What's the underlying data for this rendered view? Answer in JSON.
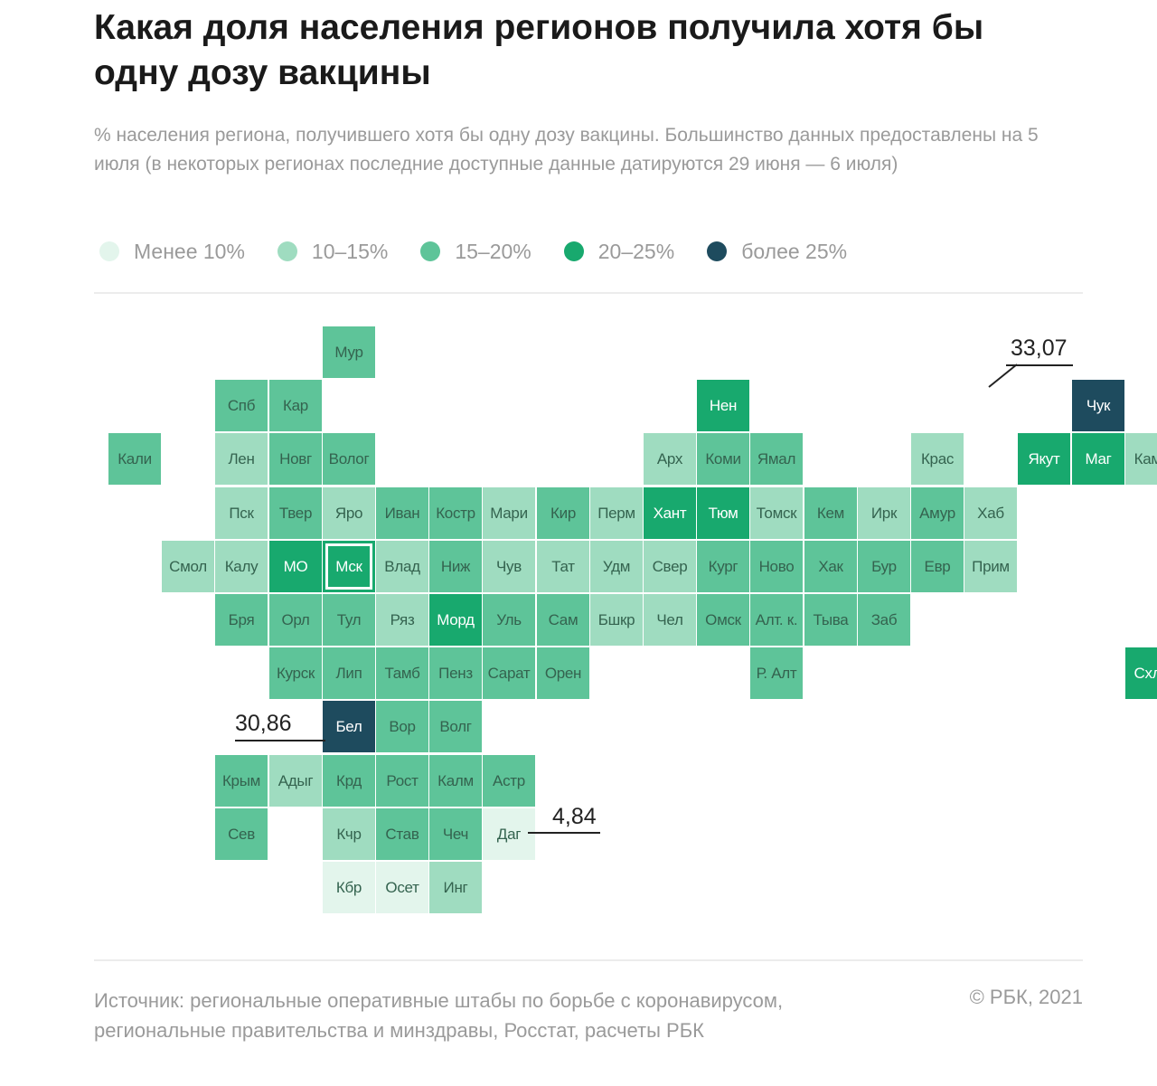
{
  "title": "Какая доля населения регионов получила хотя бы одну дозу вакцины",
  "subtitle": "% населения региона, получившего хотя бы одну дозу вакцины. Большинство данных предоставлены на 5 июля (в некоторых регионах последние доступные данные датируются 29 июня — 6 июля)",
  "legend": [
    {
      "label": "Менее 10%",
      "color": "#e3f5ec"
    },
    {
      "label": "10–15%",
      "color": "#9fdcc0"
    },
    {
      "label": "15–20%",
      "color": "#5ec499"
    },
    {
      "label": "20–25%",
      "color": "#18a96e"
    },
    {
      "label": "более 25%",
      "color": "#1e4b5e"
    }
  ],
  "text_colors": {
    "dark": "#34634f",
    "light": "#ffffff"
  },
  "regions": [
    {
      "label": "Мур",
      "class": 2,
      "col": 4,
      "row": 0
    },
    {
      "label": "Спб",
      "class": 2,
      "col": 2,
      "row": 1
    },
    {
      "label": "Кар",
      "class": 2,
      "col": 3,
      "row": 1
    },
    {
      "label": "Нен",
      "class": 3,
      "col": 11,
      "row": 1
    },
    {
      "label": "Чук",
      "class": 4,
      "col": 18,
      "row": 1
    },
    {
      "label": "Кали",
      "class": 2,
      "col": 0,
      "row": 2
    },
    {
      "label": "Лен",
      "class": 1,
      "col": 2,
      "row": 2
    },
    {
      "label": "Новг",
      "class": 2,
      "col": 3,
      "row": 2
    },
    {
      "label": "Волог",
      "class": 2,
      "col": 4,
      "row": 2
    },
    {
      "label": "Арх",
      "class": 1,
      "col": 10,
      "row": 2
    },
    {
      "label": "Коми",
      "class": 2,
      "col": 11,
      "row": 2
    },
    {
      "label": "Ямал",
      "class": 2,
      "col": 12,
      "row": 2
    },
    {
      "label": "Крас",
      "class": 1,
      "col": 15,
      "row": 2
    },
    {
      "label": "Якут",
      "class": 3,
      "col": 17,
      "row": 2
    },
    {
      "label": "Маг",
      "class": 3,
      "col": 18,
      "row": 2
    },
    {
      "label": "Камч",
      "class": 1,
      "col": 19,
      "row": 2
    },
    {
      "label": "Пск",
      "class": 1,
      "col": 2,
      "row": 3
    },
    {
      "label": "Твер",
      "class": 2,
      "col": 3,
      "row": 3
    },
    {
      "label": "Яро",
      "class": 1,
      "col": 4,
      "row": 3
    },
    {
      "label": "Иван",
      "class": 2,
      "col": 5,
      "row": 3
    },
    {
      "label": "Костр",
      "class": 2,
      "col": 6,
      "row": 3
    },
    {
      "label": "Мари",
      "class": 1,
      "col": 7,
      "row": 3
    },
    {
      "label": "Кир",
      "class": 2,
      "col": 8,
      "row": 3
    },
    {
      "label": "Перм",
      "class": 1,
      "col": 9,
      "row": 3
    },
    {
      "label": "Хант",
      "class": 3,
      "col": 10,
      "row": 3
    },
    {
      "label": "Тюм",
      "class": 3,
      "col": 11,
      "row": 3
    },
    {
      "label": "Томск",
      "class": 1,
      "col": 12,
      "row": 3
    },
    {
      "label": "Кем",
      "class": 2,
      "col": 13,
      "row": 3
    },
    {
      "label": "Ирк",
      "class": 1,
      "col": 14,
      "row": 3
    },
    {
      "label": "Амур",
      "class": 2,
      "col": 15,
      "row": 3
    },
    {
      "label": "Хаб",
      "class": 1,
      "col": 16,
      "row": 3
    },
    {
      "label": "Смол",
      "class": 1,
      "col": 1,
      "row": 4
    },
    {
      "label": "Калу",
      "class": 1,
      "col": 2,
      "row": 4
    },
    {
      "label": "МО",
      "class": 3,
      "col": 3,
      "row": 4
    },
    {
      "label": "Мск",
      "class": 3,
      "col": 4,
      "row": 4,
      "outlined": true
    },
    {
      "label": "Влад",
      "class": 1,
      "col": 5,
      "row": 4
    },
    {
      "label": "Ниж",
      "class": 2,
      "col": 6,
      "row": 4
    },
    {
      "label": "Чув",
      "class": 1,
      "col": 7,
      "row": 4
    },
    {
      "label": "Тат",
      "class": 1,
      "col": 8,
      "row": 4
    },
    {
      "label": "Удм",
      "class": 1,
      "col": 9,
      "row": 4
    },
    {
      "label": "Свер",
      "class": 1,
      "col": 10,
      "row": 4
    },
    {
      "label": "Кург",
      "class": 2,
      "col": 11,
      "row": 4
    },
    {
      "label": "Ново",
      "class": 2,
      "col": 12,
      "row": 4
    },
    {
      "label": "Хак",
      "class": 2,
      "col": 13,
      "row": 4
    },
    {
      "label": "Бур",
      "class": 2,
      "col": 14,
      "row": 4
    },
    {
      "label": "Евр",
      "class": 2,
      "col": 15,
      "row": 4
    },
    {
      "label": "Прим",
      "class": 1,
      "col": 16,
      "row": 4
    },
    {
      "label": "Бря",
      "class": 2,
      "col": 2,
      "row": 5
    },
    {
      "label": "Орл",
      "class": 2,
      "col": 3,
      "row": 5
    },
    {
      "label": "Тул",
      "class": 2,
      "col": 4,
      "row": 5
    },
    {
      "label": "Ряз",
      "class": 1,
      "col": 5,
      "row": 5
    },
    {
      "label": "Морд",
      "class": 3,
      "col": 6,
      "row": 5
    },
    {
      "label": "Уль",
      "class": 2,
      "col": 7,
      "row": 5
    },
    {
      "label": "Сам",
      "class": 2,
      "col": 8,
      "row": 5
    },
    {
      "label": "Бшкр",
      "class": 1,
      "col": 9,
      "row": 5
    },
    {
      "label": "Чел",
      "class": 1,
      "col": 10,
      "row": 5
    },
    {
      "label": "Омск",
      "class": 2,
      "col": 11,
      "row": 5
    },
    {
      "label": "Алт. к.",
      "class": 2,
      "col": 12,
      "row": 5
    },
    {
      "label": "Тыва",
      "class": 2,
      "col": 13,
      "row": 5
    },
    {
      "label": "Заб",
      "class": 2,
      "col": 14,
      "row": 5
    },
    {
      "label": "Курск",
      "class": 2,
      "col": 3,
      "row": 6
    },
    {
      "label": "Лип",
      "class": 2,
      "col": 4,
      "row": 6
    },
    {
      "label": "Тамб",
      "class": 2,
      "col": 5,
      "row": 6
    },
    {
      "label": "Пенз",
      "class": 2,
      "col": 6,
      "row": 6
    },
    {
      "label": "Сарат",
      "class": 2,
      "col": 7,
      "row": 6
    },
    {
      "label": "Орен",
      "class": 2,
      "col": 8,
      "row": 6
    },
    {
      "label": "Р. Алт",
      "class": 2,
      "col": 12,
      "row": 6
    },
    {
      "label": "Схлн",
      "class": 3,
      "col": 19,
      "row": 6
    },
    {
      "label": "Бел",
      "class": 4,
      "col": 4,
      "row": 7
    },
    {
      "label": "Вор",
      "class": 2,
      "col": 5,
      "row": 7
    },
    {
      "label": "Волг",
      "class": 2,
      "col": 6,
      "row": 7
    },
    {
      "label": "Крым",
      "class": 2,
      "col": 2,
      "row": 8
    },
    {
      "label": "Адыг",
      "class": 1,
      "col": 3,
      "row": 8
    },
    {
      "label": "Крд",
      "class": 2,
      "col": 4,
      "row": 8
    },
    {
      "label": "Рост",
      "class": 2,
      "col": 5,
      "row": 8
    },
    {
      "label": "Калм",
      "class": 2,
      "col": 6,
      "row": 8
    },
    {
      "label": "Астр",
      "class": 2,
      "col": 7,
      "row": 8
    },
    {
      "label": "Сев",
      "class": 2,
      "col": 2,
      "row": 9
    },
    {
      "label": "Кчр",
      "class": 1,
      "col": 4,
      "row": 9
    },
    {
      "label": "Став",
      "class": 2,
      "col": 5,
      "row": 9
    },
    {
      "label": "Чеч",
      "class": 2,
      "col": 6,
      "row": 9
    },
    {
      "label": "Даг",
      "class": 0,
      "col": 7,
      "row": 9
    },
    {
      "label": "Кбр",
      "class": 0,
      "col": 4,
      "row": 10
    },
    {
      "label": "Осет",
      "class": 0,
      "col": 5,
      "row": 10
    },
    {
      "label": "Инг",
      "class": 1,
      "col": 6,
      "row": 10
    }
  ],
  "callouts": [
    {
      "value": "33,07",
      "region": "Чук"
    },
    {
      "value": "30,86",
      "region": "Бел"
    },
    {
      "value": "4,84",
      "region": "Даг"
    }
  ],
  "source": "Источник:  региональные оперативные штабы по борьбе с коронавирусом, региональные правительства и минздравы, Росстат, расчеты РБК",
  "copyright": "©  РБК, 2021"
}
